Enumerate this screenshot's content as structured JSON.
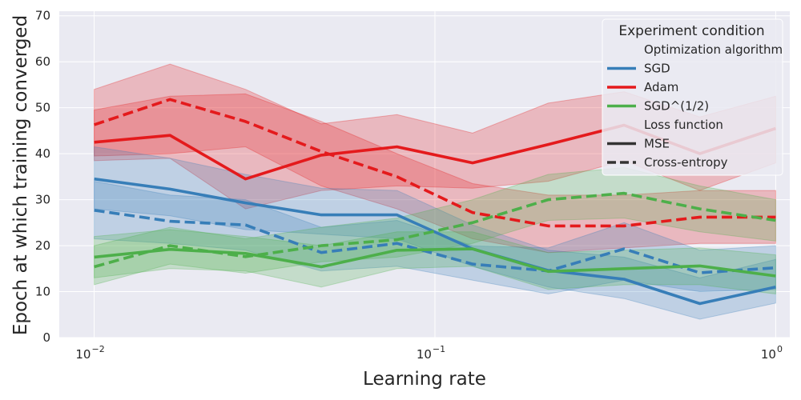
{
  "chart_data": {
    "type": "line",
    "xscale": "log",
    "xlabel": "Learning rate",
    "ylabel": "Epoch at which training converged",
    "xlim": [
      0.0079,
      1.1
    ],
    "ylim": [
      0,
      71
    ],
    "xticks": [
      0.01,
      0.1,
      1
    ],
    "xtick_labels": [
      [
        "10",
        "−2"
      ],
      [
        "10",
        "−1"
      ],
      [
        "10",
        "0"
      ]
    ],
    "yticks": [
      0,
      10,
      20,
      30,
      40,
      50,
      60,
      70
    ],
    "grid": true,
    "legend": {
      "placement": "top-right",
      "title": "Experiment condition",
      "sections": [
        {
          "header": "Optimization algorithm",
          "entries": [
            {
              "label": "SGD",
              "color": "#377eb8",
              "dash": "solid"
            },
            {
              "label": "Adam",
              "color": "#e41a1c",
              "dash": "solid"
            },
            {
              "label": "SGD^(1/2)",
              "color": "#4daf4a",
              "dash": "solid"
            }
          ]
        },
        {
          "header": "Loss function",
          "entries": [
            {
              "label": "MSE",
              "color": "#333333",
              "dash": "solid"
            },
            {
              "label": "Cross-entropy",
              "color": "#333333",
              "dash": "dashed"
            }
          ]
        }
      ]
    },
    "x": [
      0.01,
      0.0167,
      0.0278,
      0.0464,
      0.0774,
      0.129,
      0.215,
      0.359,
      0.599,
      1.0
    ],
    "series": [
      {
        "optimizer": "Adam",
        "loss": "MSE",
        "color": "#e41a1c",
        "dash": "solid",
        "values": [
          42.5,
          44.0,
          34.5,
          39.7,
          41.5,
          38.0,
          42.0,
          46.2,
          40.0,
          45.5
        ],
        "lower": [
          38.5,
          39.0,
          28.0,
          32.0,
          33.0,
          32.5,
          34.0,
          38.5,
          32.0,
          38.0
        ],
        "upper": [
          54.0,
          59.5,
          54.0,
          46.5,
          48.5,
          44.5,
          51.0,
          53.5,
          48.0,
          52.5
        ]
      },
      {
        "optimizer": "Adam",
        "loss": "Cross-entropy",
        "color": "#e41a1c",
        "dash": "dashed",
        "values": [
          46.3,
          51.8,
          47.0,
          40.5,
          35.0,
          27.2,
          24.3,
          24.3,
          26.2,
          26.2
        ],
        "lower": [
          39.5,
          40.0,
          41.5,
          33.0,
          28.0,
          21.5,
          18.5,
          19.5,
          20.5,
          20.5
        ],
        "upper": [
          49.5,
          52.5,
          53.0,
          47.0,
          40.0,
          33.5,
          31.0,
          31.0,
          32.0,
          32.0
        ]
      },
      {
        "optimizer": "SGD",
        "loss": "MSE",
        "color": "#377eb8",
        "dash": "solid",
        "values": [
          34.5,
          32.3,
          29.3,
          26.7,
          26.7,
          19.3,
          14.6,
          12.7,
          7.4,
          11.0
        ],
        "lower": [
          28.0,
          26.5,
          23.5,
          22.5,
          21.5,
          15.5,
          11.0,
          8.5,
          4.0,
          7.5
        ],
        "upper": [
          41.5,
          39.0,
          35.5,
          32.5,
          32.0,
          24.5,
          19.0,
          17.5,
          13.0,
          17.0
        ]
      },
      {
        "optimizer": "SGD",
        "loss": "Cross-entropy",
        "color": "#377eb8",
        "dash": "dashed",
        "values": [
          27.7,
          25.3,
          24.5,
          18.5,
          20.5,
          16.0,
          14.5,
          19.3,
          14.1,
          15.2
        ],
        "lower": [
          21.5,
          20.5,
          19.0,
          14.5,
          15.5,
          12.5,
          9.5,
          12.5,
          10.0,
          10.5
        ],
        "upper": [
          34.0,
          31.0,
          30.0,
          24.0,
          25.5,
          20.0,
          19.5,
          25.0,
          19.0,
          20.0
        ]
      },
      {
        "optimizer": "SGD^(1/2)",
        "loss": "MSE",
        "color": "#4daf4a",
        "dash": "solid",
        "values": [
          17.5,
          19.2,
          18.3,
          15.4,
          19.0,
          19.3,
          14.4,
          15.0,
          15.6,
          13.4
        ],
        "lower": [
          13.0,
          15.0,
          14.5,
          11.0,
          15.0,
          15.5,
          10.5,
          11.5,
          11.5,
          9.5
        ],
        "upper": [
          22.0,
          23.5,
          22.0,
          20.0,
          23.0,
          23.0,
          18.5,
          19.0,
          19.5,
          18.0
        ]
      },
      {
        "optimizer": "SGD^(1/2)",
        "loss": "Cross-entropy",
        "color": "#4daf4a",
        "dash": "dashed",
        "values": [
          15.4,
          20.0,
          17.6,
          20.0,
          21.3,
          25.0,
          30.0,
          31.4,
          28.0,
          25.5
        ],
        "lower": [
          11.5,
          16.0,
          14.0,
          16.5,
          17.5,
          20.5,
          25.5,
          26.0,
          23.0,
          21.0
        ],
        "upper": [
          20.0,
          24.0,
          21.5,
          24.0,
          26.0,
          30.0,
          35.5,
          37.0,
          33.0,
          30.0
        ]
      }
    ]
  }
}
